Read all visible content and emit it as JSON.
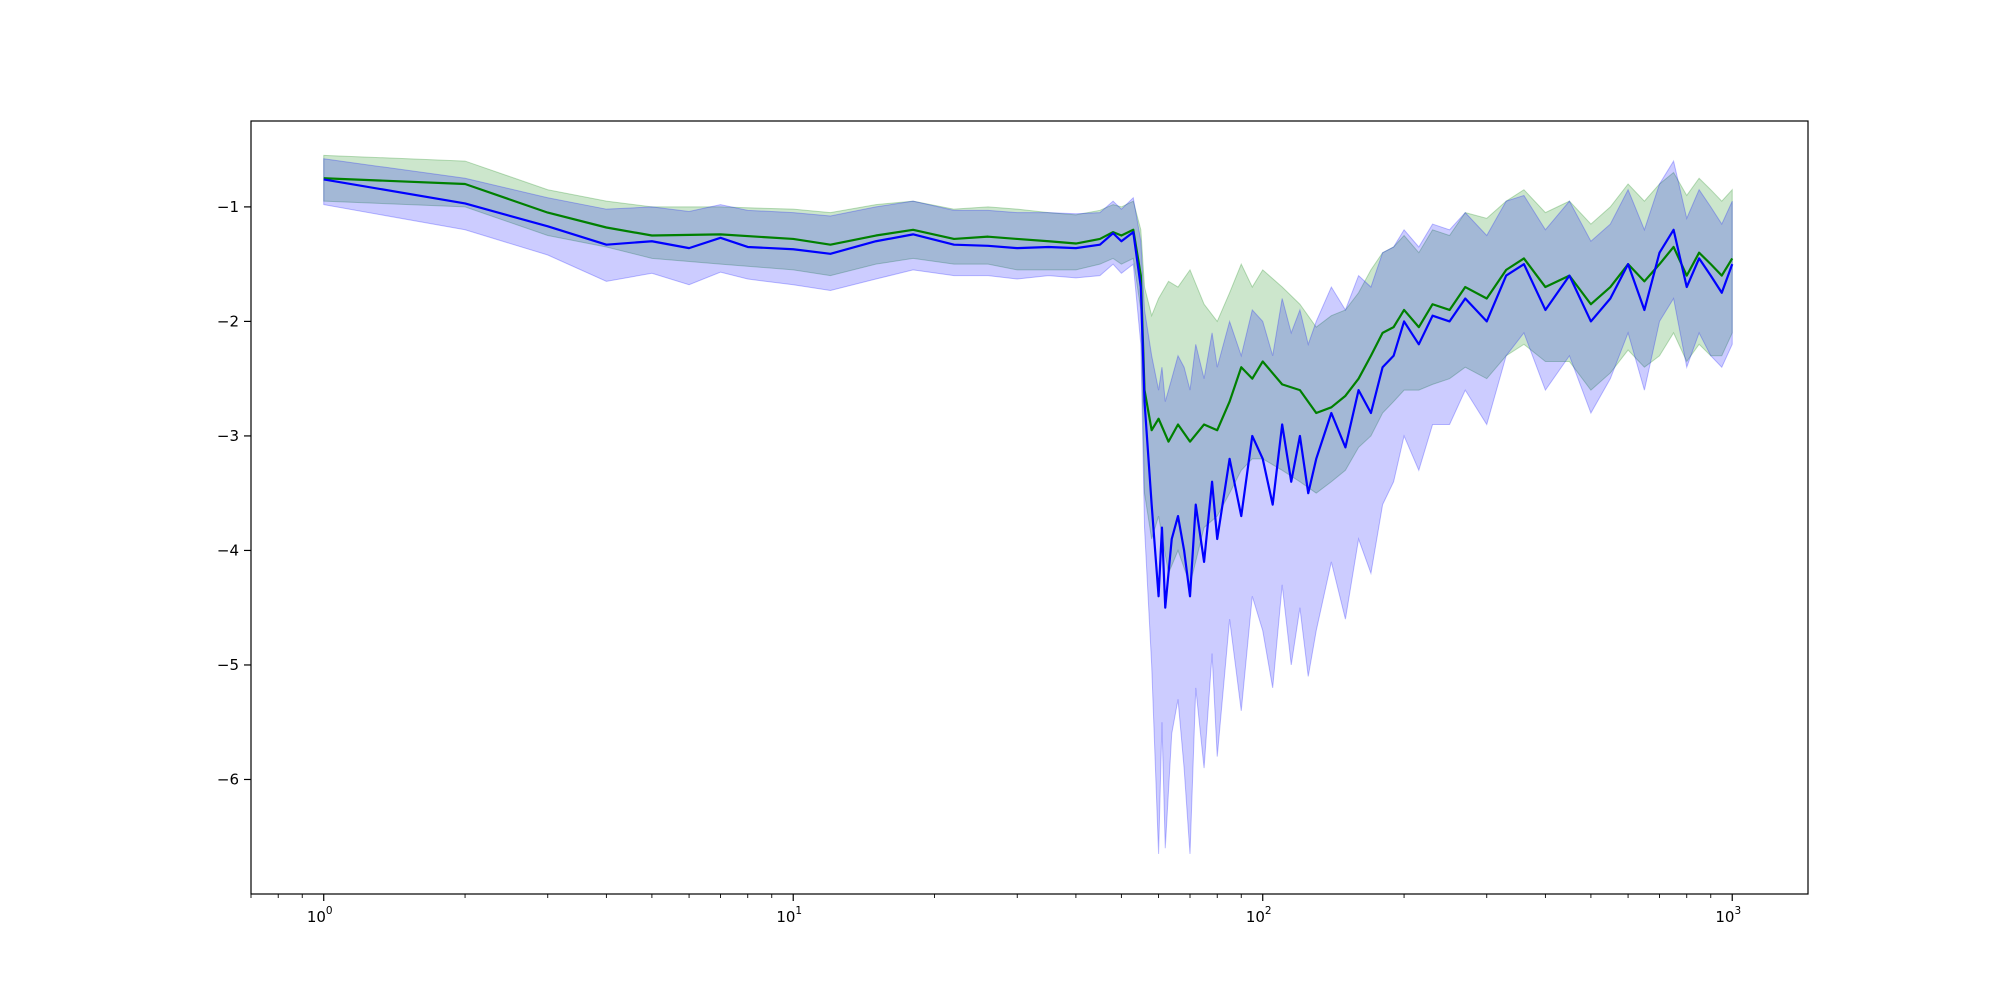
{
  "chart_data": {
    "type": "line",
    "x_scale": "log",
    "xlim": [
      0.7,
      1450
    ],
    "ylim": [
      -7.0,
      -0.25
    ],
    "grid": false,
    "legend": "none",
    "x_ticks": [
      {
        "value": 1,
        "base": "10",
        "exp": "0"
      },
      {
        "value": 10,
        "base": "10",
        "exp": "1"
      },
      {
        "value": 100,
        "base": "10",
        "exp": "2"
      },
      {
        "value": 1000,
        "base": "10",
        "exp": "3"
      }
    ],
    "y_ticks": [
      {
        "value": -1,
        "label": "−1"
      },
      {
        "value": -2,
        "label": "−2"
      },
      {
        "value": -3,
        "label": "−3"
      },
      {
        "value": -4,
        "label": "−4"
      },
      {
        "value": -5,
        "label": "−5"
      },
      {
        "value": -6,
        "label": "−6"
      }
    ],
    "series": [
      {
        "color": "#008000",
        "band_color": "#008000",
        "x": [
          1,
          2,
          3,
          4,
          5,
          7,
          10,
          12,
          15,
          18,
          22,
          26,
          30,
          35,
          40,
          45,
          48,
          50,
          53,
          55,
          56,
          58,
          60,
          63,
          66,
          70,
          75,
          80,
          85,
          90,
          95,
          100,
          110,
          120,
          130,
          140,
          150,
          160,
          170,
          180,
          190,
          200,
          215,
          230,
          250,
          270,
          300,
          330,
          360,
          400,
          450,
          500,
          550,
          600,
          650,
          700,
          750,
          800,
          850,
          900,
          950,
          1000
        ],
        "y": [
          -0.75,
          -0.8,
          -1.05,
          -1.18,
          -1.25,
          -1.24,
          -1.28,
          -1.33,
          -1.25,
          -1.2,
          -1.28,
          -1.26,
          -1.28,
          -1.3,
          -1.32,
          -1.28,
          -1.22,
          -1.25,
          -1.2,
          -1.6,
          -2.6,
          -2.95,
          -2.85,
          -3.05,
          -2.9,
          -3.05,
          -2.9,
          -2.95,
          -2.7,
          -2.4,
          -2.5,
          -2.35,
          -2.55,
          -2.6,
          -2.8,
          -2.75,
          -2.65,
          -2.5,
          -2.3,
          -2.1,
          -2.05,
          -1.9,
          -2.05,
          -1.85,
          -1.9,
          -1.7,
          -1.8,
          -1.55,
          -1.45,
          -1.7,
          -1.6,
          -1.85,
          -1.7,
          -1.5,
          -1.65,
          -1.5,
          -1.35,
          -1.6,
          -1.4,
          -1.5,
          -1.6,
          -1.45
        ],
        "lower": [
          -0.95,
          -1.0,
          -1.25,
          -1.35,
          -1.45,
          -1.5,
          -1.55,
          -1.6,
          -1.5,
          -1.45,
          -1.5,
          -1.5,
          -1.55,
          -1.55,
          -1.55,
          -1.5,
          -1.45,
          -1.5,
          -1.45,
          -1.9,
          -3.5,
          -3.9,
          -3.7,
          -4.2,
          -4.0,
          -4.3,
          -3.8,
          -3.7,
          -3.5,
          -3.3,
          -3.2,
          -3.2,
          -3.3,
          -3.4,
          -3.5,
          -3.4,
          -3.3,
          -3.1,
          -3.0,
          -2.8,
          -2.7,
          -2.6,
          -2.6,
          -2.55,
          -2.5,
          -2.4,
          -2.5,
          -2.3,
          -2.2,
          -2.35,
          -2.35,
          -2.6,
          -2.45,
          -2.25,
          -2.4,
          -2.3,
          -2.1,
          -2.35,
          -2.2,
          -2.3,
          -2.3,
          -2.1
        ],
        "upper": [
          -0.55,
          -0.6,
          -0.85,
          -0.95,
          -1.0,
          -1.0,
          -1.02,
          -1.05,
          -0.98,
          -0.95,
          -1.02,
          -1.0,
          -1.02,
          -1.05,
          -1.07,
          -1.03,
          -0.98,
          -1.0,
          -0.95,
          -1.2,
          -1.7,
          -1.95,
          -1.8,
          -1.65,
          -1.7,
          -1.55,
          -1.85,
          -2.0,
          -1.75,
          -1.5,
          -1.7,
          -1.55,
          -1.7,
          -1.85,
          -2.05,
          -1.95,
          -1.9,
          -1.75,
          -1.55,
          -1.4,
          -1.35,
          -1.25,
          -1.4,
          -1.2,
          -1.25,
          -1.05,
          -1.1,
          -0.95,
          -0.85,
          -1.05,
          -0.95,
          -1.15,
          -1.0,
          -0.8,
          -0.95,
          -0.8,
          -0.7,
          -0.9,
          -0.75,
          -0.85,
          -0.95,
          -0.85
        ]
      },
      {
        "color": "#0000ff",
        "band_color": "#0000ff",
        "x": [
          1,
          2,
          3,
          4,
          5,
          6,
          7,
          8,
          10,
          12,
          15,
          18,
          22,
          26,
          30,
          35,
          40,
          45,
          48,
          50,
          53,
          55,
          56,
          58,
          60,
          61,
          62,
          64,
          66,
          68,
          70,
          72,
          75,
          78,
          80,
          85,
          90,
          95,
          100,
          105,
          110,
          115,
          120,
          125,
          130,
          140,
          150,
          160,
          170,
          180,
          190,
          200,
          215,
          230,
          250,
          270,
          300,
          330,
          360,
          400,
          450,
          500,
          550,
          600,
          650,
          700,
          750,
          800,
          850,
          900,
          950,
          1000
        ],
        "y": [
          -0.76,
          -0.97,
          -1.17,
          -1.33,
          -1.3,
          -1.36,
          -1.27,
          -1.35,
          -1.37,
          -1.41,
          -1.3,
          -1.24,
          -1.33,
          -1.34,
          -1.36,
          -1.35,
          -1.36,
          -1.33,
          -1.23,
          -1.3,
          -1.22,
          -1.7,
          -2.7,
          -3.6,
          -4.4,
          -3.8,
          -4.5,
          -3.9,
          -3.7,
          -4.0,
          -4.4,
          -3.6,
          -4.1,
          -3.4,
          -3.9,
          -3.2,
          -3.7,
          -3.0,
          -3.2,
          -3.6,
          -2.9,
          -3.4,
          -3.0,
          -3.5,
          -3.2,
          -2.8,
          -3.1,
          -2.6,
          -2.8,
          -2.4,
          -2.3,
          -2.0,
          -2.2,
          -1.95,
          -2.0,
          -1.8,
          -2.0,
          -1.6,
          -1.5,
          -1.9,
          -1.6,
          -2.0,
          -1.8,
          -1.5,
          -1.9,
          -1.4,
          -1.2,
          -1.7,
          -1.45,
          -1.6,
          -1.75,
          -1.5
        ],
        "lower": [
          -0.98,
          -1.2,
          -1.42,
          -1.65,
          -1.58,
          -1.68,
          -1.57,
          -1.63,
          -1.68,
          -1.73,
          -1.63,
          -1.55,
          -1.6,
          -1.6,
          -1.63,
          -1.6,
          -1.62,
          -1.6,
          -1.5,
          -1.58,
          -1.5,
          -2.2,
          -3.8,
          -5.0,
          -6.65,
          -5.5,
          -6.6,
          -5.6,
          -5.3,
          -5.9,
          -6.65,
          -5.2,
          -5.9,
          -4.9,
          -5.8,
          -4.6,
          -5.4,
          -4.4,
          -4.7,
          -5.2,
          -4.3,
          -5.0,
          -4.5,
          -5.1,
          -4.7,
          -4.1,
          -4.6,
          -3.9,
          -4.2,
          -3.6,
          -3.4,
          -3.0,
          -3.3,
          -2.9,
          -2.9,
          -2.6,
          -2.9,
          -2.3,
          -2.1,
          -2.6,
          -2.3,
          -2.8,
          -2.5,
          -2.1,
          -2.6,
          -2.0,
          -1.8,
          -2.4,
          -2.1,
          -2.3,
          -2.4,
          -2.2
        ],
        "upper": [
          -0.58,
          -0.75,
          -0.92,
          -1.02,
          -1.0,
          -1.04,
          -0.98,
          -1.03,
          -1.05,
          -1.08,
          -1.0,
          -0.95,
          -1.03,
          -1.03,
          -1.05,
          -1.05,
          -1.06,
          -1.05,
          -0.95,
          -1.02,
          -0.92,
          -1.3,
          -1.9,
          -2.3,
          -2.6,
          -2.4,
          -2.7,
          -2.5,
          -2.3,
          -2.4,
          -2.6,
          -2.2,
          -2.5,
          -2.1,
          -2.4,
          -2.0,
          -2.3,
          -1.9,
          -2.0,
          -2.3,
          -1.8,
          -2.1,
          -1.9,
          -2.2,
          -2.0,
          -1.7,
          -1.9,
          -1.6,
          -1.7,
          -1.4,
          -1.35,
          -1.2,
          -1.35,
          -1.15,
          -1.2,
          -1.05,
          -1.25,
          -0.95,
          -0.9,
          -1.2,
          -0.95,
          -1.3,
          -1.15,
          -0.85,
          -1.2,
          -0.8,
          -0.6,
          -1.1,
          -0.85,
          -1.0,
          -1.15,
          -0.95
        ]
      }
    ]
  }
}
